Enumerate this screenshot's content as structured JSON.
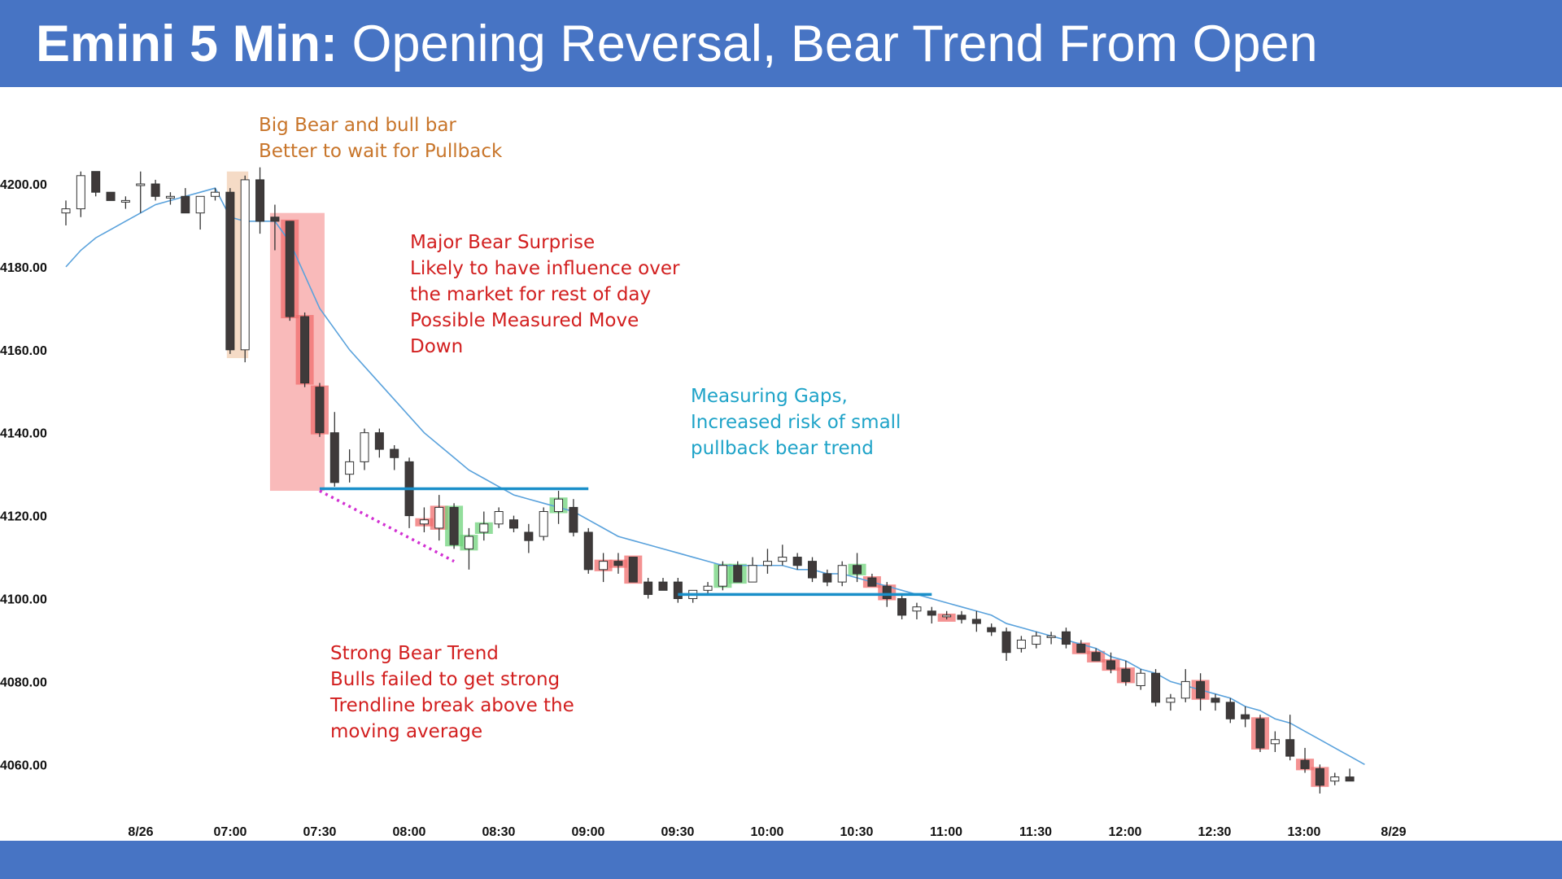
{
  "title": {
    "bold": "Emini 5 Min:",
    "rest": "Opening Reversal, Bear Trend From Open"
  },
  "colors": {
    "header": "#4774c4",
    "bear_candle": "#3f3a3a",
    "bull_candle": "#ffffff",
    "ema": "#5aa2dc",
    "bear_highlight": "#f06d6d",
    "bull_highlight": "#6fd37b",
    "big_bar_box": "#f2d2b8",
    "surprise_box": "#f7a9a9",
    "gap_line": "#1a8fc9",
    "trendline": "#d22fd2",
    "ann_orange": "#c8752a",
    "ann_red": "#d21f1f",
    "ann_blue": "#1ea3c8"
  },
  "annotations": {
    "big_bar": [
      "Big Bear and bull bar",
      "Better to wait for Pullback"
    ],
    "surprise": [
      "Major Bear Surprise",
      "Likely to have influence over",
      "the market for rest of day",
      "Possible Measured Move",
      "Down"
    ],
    "gaps": [
      "Measuring Gaps,",
      "Increased risk of small",
      "pullback bear trend"
    ],
    "strong": [
      "Strong Bear Trend",
      "Bulls failed to get strong",
      "Trendline break above the",
      "moving average"
    ]
  },
  "chart_data": {
    "type": "candlestick",
    "title": "Opening Reversal, Bear Trend From Open",
    "ylim": [
      4050,
      4220
    ],
    "y_ticks": [
      "4200.00",
      "4180.00",
      "4160.00",
      "4140.00",
      "4120.00",
      "4100.00",
      "4080.00",
      "4060.00"
    ],
    "x_ticks": [
      "8/26",
      "07:00",
      "07:30",
      "08:00",
      "08:30",
      "09:00",
      "09:30",
      "10:00",
      "10:30",
      "11:00",
      "11:30",
      "12:00",
      "12:30",
      "13:00",
      "8/29"
    ],
    "bars": [
      {
        "t": "8/26 last",
        "o": 4193,
        "h": 4196,
        "l": 4190,
        "c": 4194
      },
      {
        "t": "8/26 last",
        "o": 4194,
        "h": 4203,
        "l": 4192,
        "c": 4202
      },
      {
        "t": "06:45",
        "o": 4203,
        "h": 4203,
        "l": 4197,
        "c": 4198
      },
      {
        "t": "06:50",
        "o": 4198,
        "h": 4198,
        "l": 4196,
        "c": 4196
      },
      {
        "t": "06:55",
        "o": 4196,
        "h": 4197,
        "l": 4194,
        "c": 4196
      },
      {
        "t": "07:00",
        "o": 4200,
        "h": 4203,
        "l": 4193,
        "c": 4200
      },
      {
        "t": "07:05",
        "o": 4200,
        "h": 4201,
        "l": 4196,
        "c": 4197
      },
      {
        "t": "07:10",
        "o": 4197,
        "h": 4198,
        "l": 4195,
        "c": 4197
      },
      {
        "t": "07:15",
        "o": 4197,
        "h": 4199,
        "l": 4193,
        "c": 4193
      },
      {
        "t": "07:20",
        "o": 4193,
        "h": 4197,
        "l": 4189,
        "c": 4197
      },
      {
        "t": "07:25",
        "o": 4197,
        "h": 4199,
        "l": 4196,
        "c": 4198
      },
      {
        "t": "07:30",
        "o": 4198,
        "h": 4199,
        "l": 4159,
        "c": 4160
      },
      {
        "t": "07:35",
        "o": 4160,
        "h": 4202,
        "l": 4157,
        "c": 4201
      },
      {
        "t": "07:40",
        "o": 4201,
        "h": 4204,
        "l": 4188,
        "c": 4191
      },
      {
        "t": "07:45",
        "o": 4192,
        "h": 4195,
        "l": 4184,
        "c": 4191
      },
      {
        "t": "07:50",
        "o": 4191,
        "h": 4191,
        "l": 4167,
        "c": 4168
      },
      {
        "t": "07:55",
        "o": 4168,
        "h": 4169,
        "l": 4151,
        "c": 4152
      },
      {
        "t": "08:00",
        "o": 4151,
        "h": 4152,
        "l": 4139,
        "c": 4140
      },
      {
        "t": "08:05",
        "o": 4140,
        "h": 4145,
        "l": 4127,
        "c": 4128
      },
      {
        "t": "08:10",
        "o": 4130,
        "h": 4136,
        "l": 4128,
        "c": 4133
      },
      {
        "t": "08:15",
        "o": 4133,
        "h": 4141,
        "l": 4131,
        "c": 4140
      },
      {
        "t": "08:20",
        "o": 4140,
        "h": 4141,
        "l": 4134,
        "c": 4136
      },
      {
        "t": "08:25",
        "o": 4136,
        "h": 4137,
        "l": 4131,
        "c": 4134
      },
      {
        "t": "08:30",
        "o": 4133,
        "h": 4134,
        "l": 4117,
        "c": 4120
      },
      {
        "t": "08:35",
        "o": 4118,
        "h": 4122,
        "l": 4116,
        "c": 4119
      },
      {
        "t": "08:40",
        "o": 4117,
        "h": 4125,
        "l": 4114,
        "c": 4122
      },
      {
        "t": "08:45",
        "o": 4122,
        "h": 4123,
        "l": 4112,
        "c": 4113
      },
      {
        "t": "08:50",
        "o": 4112,
        "h": 4117,
        "l": 4107,
        "c": 4115
      },
      {
        "t": "08:55",
        "o": 4116,
        "h": 4121,
        "l": 4114,
        "c": 4118
      },
      {
        "t": "09:00",
        "o": 4118,
        "h": 4122,
        "l": 4117,
        "c": 4121
      },
      {
        "t": "09:05",
        "o": 4119,
        "h": 4120,
        "l": 4116,
        "c": 4117
      },
      {
        "t": "09:10",
        "o": 4116,
        "h": 4118,
        "l": 4111,
        "c": 4114
      },
      {
        "t": "09:15",
        "o": 4115,
        "h": 4122,
        "l": 4114,
        "c": 4121
      },
      {
        "t": "09:20",
        "o": 4121,
        "h": 4126,
        "l": 4118,
        "c": 4124
      },
      {
        "t": "09:25",
        "o": 4122,
        "h": 4124,
        "l": 4115,
        "c": 4116
      },
      {
        "t": "09:30",
        "o": 4116,
        "h": 4117,
        "l": 4106,
        "c": 4107
      },
      {
        "t": "09:35",
        "o": 4107,
        "h": 4111,
        "l": 4104,
        "c": 4109
      },
      {
        "t": "09:40",
        "o": 4109,
        "h": 4111,
        "l": 4106,
        "c": 4108
      },
      {
        "t": "09:45",
        "o": 4110,
        "h": 4110,
        "l": 4104,
        "c": 4104
      },
      {
        "t": "09:50",
        "o": 4104,
        "h": 4105,
        "l": 4100,
        "c": 4101
      },
      {
        "t": "09:55",
        "o": 4104,
        "h": 4105,
        "l": 4102,
        "c": 4102
      },
      {
        "t": "10:00",
        "o": 4104,
        "h": 4105,
        "l": 4099,
        "c": 4100
      },
      {
        "t": "10:05",
        "o": 4100,
        "h": 4102,
        "l": 4099,
        "c": 4102
      },
      {
        "t": "10:10",
        "o": 4102,
        "h": 4104,
        "l": 4101,
        "c": 4103
      },
      {
        "t": "10:15",
        "o": 4103,
        "h": 4109,
        "l": 4102,
        "c": 4108
      },
      {
        "t": "10:20",
        "o": 4108,
        "h": 4109,
        "l": 4104,
        "c": 4104
      },
      {
        "t": "10:25",
        "o": 4104,
        "h": 4110,
        "l": 4104,
        "c": 4108
      },
      {
        "t": "10:30",
        "o": 4108,
        "h": 4112,
        "l": 4106,
        "c": 4109
      },
      {
        "t": "10:35",
        "o": 4109,
        "h": 4113,
        "l": 4108,
        "c": 4110
      },
      {
        "t": "10:40",
        "o": 4110,
        "h": 4111,
        "l": 4107,
        "c": 4108
      },
      {
        "t": "10:45",
        "o": 4109,
        "h": 4110,
        "l": 4104,
        "c": 4105
      },
      {
        "t": "10:50",
        "o": 4106,
        "h": 4107,
        "l": 4103,
        "c": 4104
      },
      {
        "t": "10:55",
        "o": 4104,
        "h": 4109,
        "l": 4103,
        "c": 4108
      },
      {
        "t": "11:00",
        "o": 4108,
        "h": 4111,
        "l": 4104,
        "c": 4106
      },
      {
        "t": "11:05",
        "o": 4105,
        "h": 4106,
        "l": 4103,
        "c": 4103
      },
      {
        "t": "11:10",
        "o": 4103,
        "h": 4104,
        "l": 4098,
        "c": 4100
      },
      {
        "t": "11:15",
        "o": 4100,
        "h": 4101,
        "l": 4095,
        "c": 4096
      },
      {
        "t": "11:20",
        "o": 4097,
        "h": 4099,
        "l": 4095,
        "c": 4098
      },
      {
        "t": "11:25",
        "o": 4097,
        "h": 4098,
        "l": 4094,
        "c": 4096
      },
      {
        "t": "11:30",
        "o": 4096,
        "h": 4097,
        "l": 4095,
        "c": 4096
      },
      {
        "t": "11:35",
        "o": 4096,
        "h": 4097,
        "l": 4094,
        "c": 4095
      },
      {
        "t": "11:40",
        "o": 4095,
        "h": 4097,
        "l": 4092,
        "c": 4094
      },
      {
        "t": "11:45",
        "o": 4093,
        "h": 4094,
        "l": 4091,
        "c": 4092
      },
      {
        "t": "11:50",
        "o": 4092,
        "h": 4093,
        "l": 4085,
        "c": 4087
      },
      {
        "t": "11:55",
        "o": 4088,
        "h": 4091,
        "l": 4087,
        "c": 4090
      },
      {
        "t": "12:00",
        "o": 4089,
        "h": 4092,
        "l": 4088,
        "c": 4091
      },
      {
        "t": "12:05",
        "o": 4091,
        "h": 4092,
        "l": 4089,
        "c": 4091
      },
      {
        "t": "12:10",
        "o": 4092,
        "h": 4093,
        "l": 4088,
        "c": 4089
      },
      {
        "t": "12:15",
        "o": 4089,
        "h": 4090,
        "l": 4087,
        "c": 4087
      },
      {
        "t": "12:20",
        "o": 4087,
        "h": 4088,
        "l": 4085,
        "c": 4085
      },
      {
        "t": "12:25",
        "o": 4085,
        "h": 4087,
        "l": 4082,
        "c": 4083
      },
      {
        "t": "12:30",
        "o": 4083,
        "h": 4085,
        "l": 4079,
        "c": 4080
      },
      {
        "t": "12:35",
        "o": 4079,
        "h": 4083,
        "l": 4078,
        "c": 4082
      },
      {
        "t": "12:40",
        "o": 4082,
        "h": 4083,
        "l": 4074,
        "c": 4075
      },
      {
        "t": "12:45",
        "o": 4075,
        "h": 4077,
        "l": 4073,
        "c": 4076
      },
      {
        "t": "12:50",
        "o": 4076,
        "h": 4083,
        "l": 4075,
        "c": 4080
      },
      {
        "t": "12:55",
        "o": 4080,
        "h": 4082,
        "l": 4073,
        "c": 4076
      },
      {
        "t": "13:00",
        "o": 4076,
        "h": 4077,
        "l": 4073,
        "c": 4075
      },
      {
        "t": "13:05",
        "o": 4075,
        "h": 4076,
        "l": 4070,
        "c": 4071
      },
      {
        "t": "13:10",
        "o": 4072,
        "h": 4074,
        "l": 4069,
        "c": 4071
      },
      {
        "t": "13:15",
        "o": 4071,
        "h": 4072,
        "l": 4063,
        "c": 4064
      },
      {
        "t": "13:20",
        "o": 4065,
        "h": 4068,
        "l": 4063,
        "c": 4066
      },
      {
        "t": "13:25",
        "o": 4066,
        "h": 4072,
        "l": 4061,
        "c": 4062
      },
      {
        "t": "13:30",
        "o": 4061,
        "h": 4064,
        "l": 4058,
        "c": 4059
      },
      {
        "t": "13:35",
        "o": 4059,
        "h": 4060,
        "l": 4053,
        "c": 4055
      },
      {
        "t": "13:40",
        "o": 4056,
        "h": 4058,
        "l": 4055,
        "c": 4057
      },
      {
        "t": "13:45",
        "o": 4057,
        "h": 4059,
        "l": 4056,
        "c": 4056
      }
    ],
    "ema": [
      4180,
      4184,
      4187,
      4189,
      4191,
      4193,
      4195,
      4196,
      4197,
      4198,
      4199,
      4192,
      4191,
      4191,
      4191,
      4186,
      4178,
      4170,
      4165,
      4160,
      4156,
      4152,
      4148,
      4144,
      4140,
      4137,
      4134,
      4131,
      4129,
      4127,
      4125,
      4124,
      4123,
      4122,
      4121,
      4119,
      4117,
      4115,
      4114,
      4113,
      4112,
      4111,
      4110,
      4109,
      4108,
      4108,
      4108,
      4108,
      4108,
      4107,
      4107,
      4106,
      4106,
      4105,
      4104,
      4103,
      4102,
      4101,
      4100,
      4099,
      4098,
      4097,
      4096,
      4094,
      4093,
      4092,
      4091,
      4090,
      4089,
      4088,
      4086,
      4085,
      4083,
      4082,
      4080,
      4079,
      4078,
      4077,
      4076,
      4074,
      4073,
      4071,
      4070,
      4068,
      4066,
      4064,
      4062,
      4060
    ],
    "measuring_gaps": [
      {
        "from_bar": 17,
        "to_bar": 35,
        "price": 4126.5
      },
      {
        "from_bar": 41,
        "to_bar": 58,
        "price": 4101
      }
    ],
    "trendline": {
      "from_bar": 17,
      "to_bar": 26,
      "from_price": 4126,
      "to_price": 4109
    },
    "bear_highlight_bars": [
      15,
      16,
      17,
      24,
      25,
      36,
      37,
      38,
      54,
      55,
      59,
      68,
      69,
      70,
      71,
      76,
      80,
      83,
      84
    ],
    "bull_highlight_bars": [
      26,
      27,
      28,
      33,
      44,
      45,
      53
    ],
    "big_bar_box": {
      "from_bar": 11,
      "to_bar": 12,
      "low": 4158,
      "high": 4203
    },
    "surprise_box": {
      "from_bar": 14,
      "to_bar": 17,
      "low": 4126,
      "high": 4193
    }
  }
}
